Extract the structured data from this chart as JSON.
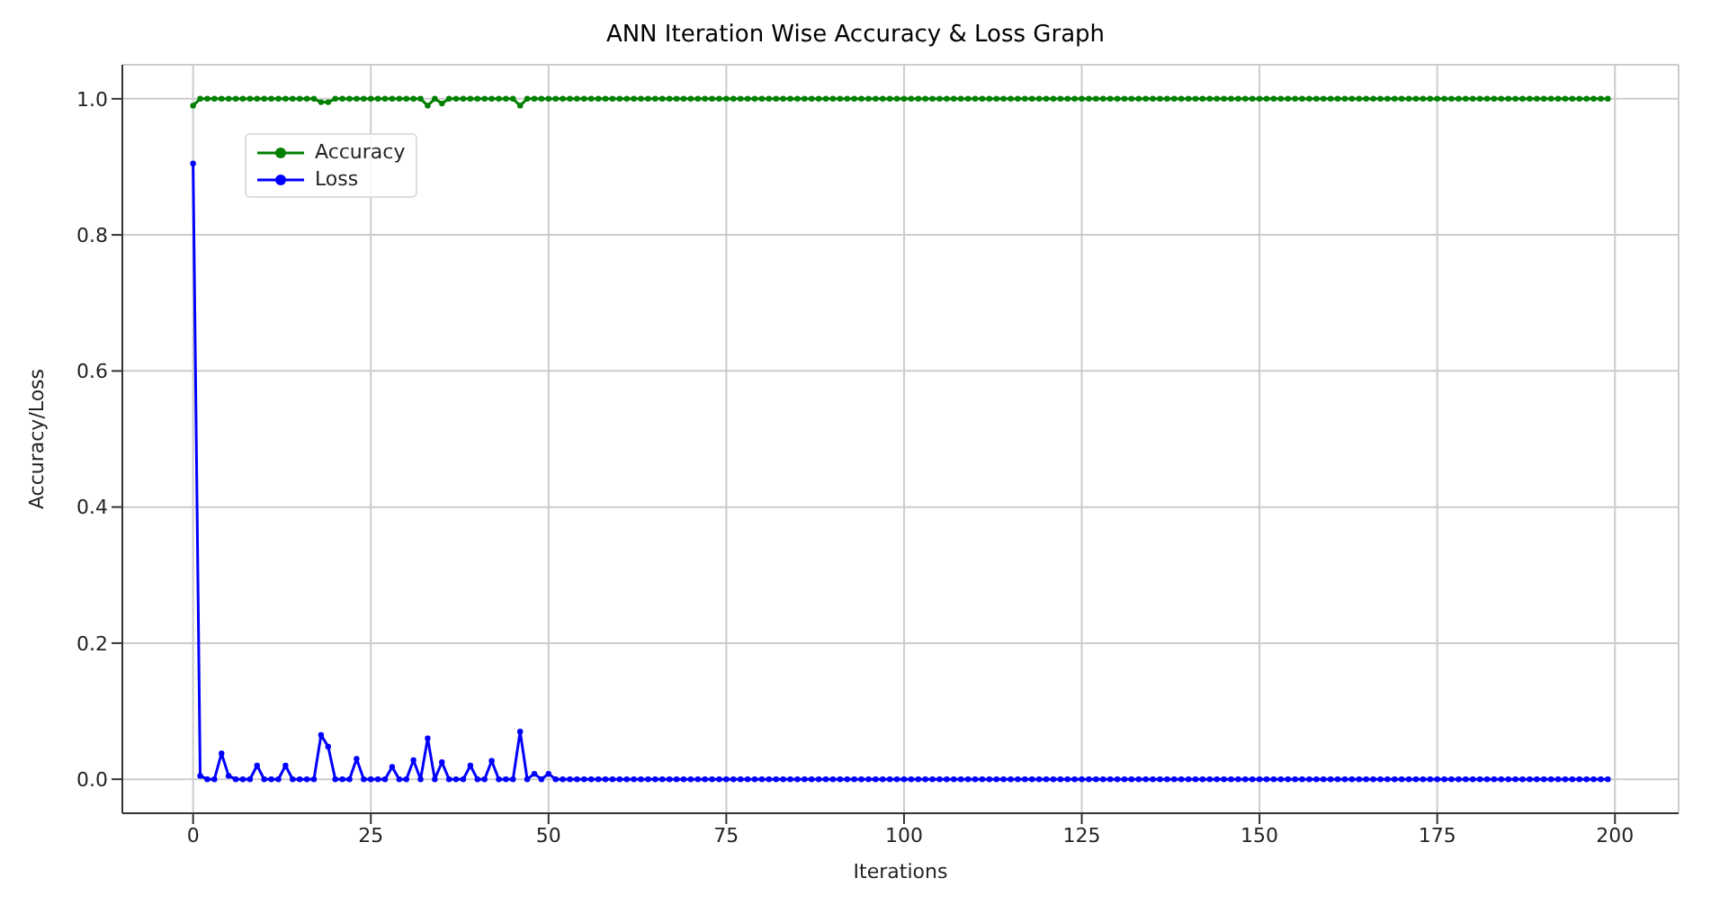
{
  "chart_data": {
    "type": "line",
    "title": "ANN Iteration Wise Accuracy & Loss Graph",
    "xlabel": "Iterations",
    "ylabel": "Accuracy/Loss",
    "x": [
      0,
      1,
      2,
      3,
      4,
      5,
      6,
      7,
      8,
      9,
      10,
      11,
      12,
      13,
      14,
      15,
      16,
      17,
      18,
      19,
      20,
      21,
      22,
      23,
      24,
      25,
      26,
      27,
      28,
      29,
      30,
      31,
      32,
      33,
      34,
      35,
      36,
      37,
      38,
      39,
      40,
      41,
      42,
      43,
      44,
      45,
      46,
      47,
      48,
      49,
      50,
      51,
      52,
      53,
      54,
      55,
      56,
      57,
      58,
      59,
      60,
      61,
      62,
      63,
      64,
      65,
      66,
      67,
      68,
      69,
      70,
      71,
      72,
      73,
      74,
      75,
      76,
      77,
      78,
      79,
      80,
      81,
      82,
      83,
      84,
      85,
      86,
      87,
      88,
      89,
      90,
      91,
      92,
      93,
      94,
      95,
      96,
      97,
      98,
      99,
      100,
      101,
      102,
      103,
      104,
      105,
      106,
      107,
      108,
      109,
      110,
      111,
      112,
      113,
      114,
      115,
      116,
      117,
      118,
      119,
      120,
      121,
      122,
      123,
      124,
      125,
      126,
      127,
      128,
      129,
      130,
      131,
      132,
      133,
      134,
      135,
      136,
      137,
      138,
      139,
      140,
      141,
      142,
      143,
      144,
      145,
      146,
      147,
      148,
      149,
      150,
      151,
      152,
      153,
      154,
      155,
      156,
      157,
      158,
      159,
      160,
      161,
      162,
      163,
      164,
      165,
      166,
      167,
      168,
      169,
      170,
      171,
      172,
      173,
      174,
      175,
      176,
      177,
      178,
      179,
      180,
      181,
      182,
      183,
      184,
      185,
      186,
      187,
      188,
      189,
      190,
      191,
      192,
      193,
      194,
      195,
      196,
      197,
      198,
      199
    ],
    "series": [
      {
        "name": "Accuracy",
        "color": "#008000",
        "values": [
          0.99,
          1,
          1,
          1,
          1,
          1,
          1,
          1,
          1,
          1,
          1,
          1,
          1,
          1,
          1,
          1,
          1,
          1,
          0.995,
          0.995,
          1,
          1,
          1,
          1,
          1,
          1,
          1,
          1,
          1,
          1,
          1,
          1,
          1,
          0.99,
          1,
          0.993,
          1,
          1,
          1,
          1,
          1,
          1,
          1,
          1,
          1,
          1,
          0.99,
          1,
          1,
          1,
          1,
          1,
          1,
          1,
          1,
          1,
          1,
          1,
          1,
          1,
          1,
          1,
          1,
          1,
          1,
          1,
          1,
          1,
          1,
          1,
          1,
          1,
          1,
          1,
          1,
          1,
          1,
          1,
          1,
          1,
          1,
          1,
          1,
          1,
          1,
          1,
          1,
          1,
          1,
          1,
          1,
          1,
          1,
          1,
          1,
          1,
          1,
          1,
          1,
          1,
          1,
          1,
          1,
          1,
          1,
          1,
          1,
          1,
          1,
          1,
          1,
          1,
          1,
          1,
          1,
          1,
          1,
          1,
          1,
          1,
          1,
          1,
          1,
          1,
          1,
          1,
          1,
          1,
          1,
          1,
          1,
          1,
          1,
          1,
          1,
          1,
          1,
          1,
          1,
          1,
          1,
          1,
          1,
          1,
          1,
          1,
          1,
          1,
          1,
          1,
          1,
          1,
          1,
          1,
          1,
          1,
          1,
          1,
          1,
          1,
          1,
          1,
          1,
          1,
          1,
          1,
          1,
          1,
          1,
          1,
          1,
          1,
          1,
          1,
          1,
          1,
          1,
          1,
          1,
          1,
          1,
          1,
          1,
          1,
          1,
          1,
          1,
          1,
          1,
          1,
          1,
          1,
          1,
          1,
          1,
          1,
          1,
          1,
          1,
          1
        ]
      },
      {
        "name": "Loss",
        "color": "#0000ff",
        "values": [
          0.905,
          0.005,
          0,
          0,
          0.038,
          0.005,
          0,
          0,
          0,
          0.02,
          0,
          0,
          0,
          0.02,
          0,
          0,
          0,
          0,
          0.065,
          0.048,
          0,
          0,
          0,
          0.03,
          0,
          0,
          0,
          0,
          0.018,
          0,
          0,
          0.028,
          0,
          0.06,
          0,
          0.025,
          0,
          0,
          0,
          0.02,
          0,
          0,
          0.027,
          0,
          0,
          0,
          0.07,
          0,
          0.008,
          0,
          0.008,
          0,
          0,
          0,
          0,
          0,
          0,
          0,
          0,
          0,
          0,
          0,
          0,
          0,
          0,
          0,
          0,
          0,
          0,
          0,
          0,
          0,
          0,
          0,
          0,
          0,
          0,
          0,
          0,
          0,
          0,
          0,
          0,
          0,
          0,
          0,
          0,
          0,
          0,
          0,
          0,
          0,
          0,
          0,
          0,
          0,
          0,
          0,
          0,
          0,
          0,
          0,
          0,
          0,
          0,
          0,
          0,
          0,
          0,
          0,
          0,
          0,
          0,
          0,
          0,
          0,
          0,
          0,
          0,
          0,
          0,
          0,
          0,
          0,
          0,
          0,
          0,
          0,
          0,
          0,
          0,
          0,
          0,
          0,
          0,
          0,
          0,
          0,
          0,
          0,
          0,
          0,
          0,
          0,
          0,
          0,
          0,
          0,
          0,
          0,
          0,
          0,
          0,
          0,
          0,
          0,
          0,
          0,
          0,
          0,
          0,
          0,
          0,
          0,
          0,
          0,
          0,
          0,
          0,
          0,
          0,
          0,
          0,
          0,
          0,
          0,
          0,
          0,
          0,
          0,
          0,
          0,
          0,
          0,
          0,
          0,
          0,
          0,
          0,
          0,
          0,
          0,
          0,
          0,
          0,
          0,
          0,
          0,
          0,
          0
        ]
      }
    ],
    "xlim": [
      -9.95,
      208.95
    ],
    "xticks": [
      0,
      25,
      50,
      75,
      100,
      125,
      150,
      175,
      200
    ],
    "ylim": [
      -0.05,
      1.05
    ],
    "yticks": [
      {
        "value": 0,
        "label": "0.0"
      },
      {
        "value": 0.2,
        "label": "0.2"
      },
      {
        "value": 0.4,
        "label": "0.4"
      },
      {
        "value": 0.6,
        "label": "0.6"
      },
      {
        "value": 0.8,
        "label": "0.8"
      },
      {
        "value": 1,
        "label": "1.0"
      }
    ],
    "grid": true,
    "legend": "top left",
    "marker": "circle",
    "line_style": "solid"
  }
}
